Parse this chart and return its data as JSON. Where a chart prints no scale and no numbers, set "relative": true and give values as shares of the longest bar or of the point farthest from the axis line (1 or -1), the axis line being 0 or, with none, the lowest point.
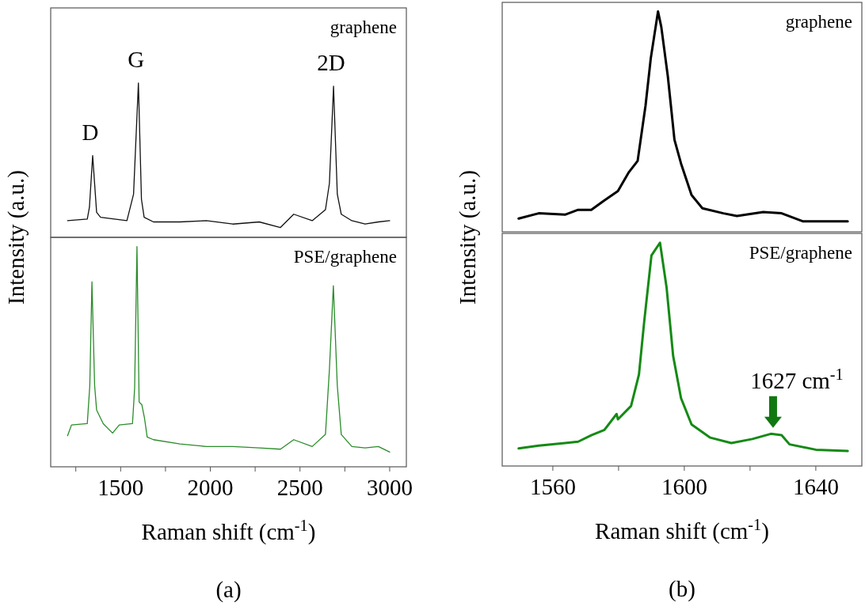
{
  "chart_data": [
    {
      "type": "line",
      "relative": true,
      "title": "graphene",
      "ylabel": "Intensity (a.u.)",
      "xlim": [
        1110,
        3093
      ],
      "tick_labels": false,
      "series": [
        {
          "color": "#111111",
          "x": [
            1204,
            1314,
            1326,
            1344,
            1366,
            1388,
            1535,
            1572,
            1599,
            1616,
            1631,
            1683,
            1831,
            1978,
            2125,
            2273,
            2391,
            2465,
            2568,
            2642,
            2664,
            2687,
            2708,
            2730,
            2789,
            2863,
            2937,
            3000
          ],
          "values": [
            0.108,
            0.119,
            0.195,
            0.53,
            0.162,
            0.13,
            0.108,
            0.28,
            1,
            0.247,
            0.13,
            0.1,
            0.1,
            0.108,
            0.086,
            0.1,
            0.064,
            0.15,
            0.108,
            0.18,
            0.35,
            0.98,
            0.28,
            0.15,
            0.108,
            0.086,
            0.1,
            0.108
          ]
        }
      ],
      "annotations": [
        {
          "text": "D",
          "x": 1344,
          "y": 0.53
        },
        {
          "text": "G",
          "x": 1599,
          "y": 1
        },
        {
          "text": "2D",
          "x": 2687,
          "y": 0.98
        }
      ]
    },
    {
      "type": "line",
      "relative": true,
      "title": "PSE/graphene",
      "xlabel": "Raman shift (cm$^{-1}$)",
      "xlim": [
        1110,
        3093
      ],
      "tick_labels": "x",
      "xticks": [
        {
          "value": 1250,
          "label": null
        },
        1500,
        {
          "value": 1750,
          "label": null
        },
        2000,
        {
          "value": 2250,
          "label": null
        },
        2500,
        {
          "value": 2750,
          "label": null
        },
        3000
      ],
      "series": [
        {
          "color": "#2a8c2a",
          "x": [
            1204,
            1226,
            1314,
            1328,
            1340,
            1355,
            1366,
            1403,
            1455,
            1492,
            1566,
            1578,
            1591,
            1603,
            1618,
            1633,
            1648,
            1683,
            1831,
            1978,
            2125,
            2273,
            2391,
            2465,
            2568,
            2642,
            2664,
            2686,
            2708,
            2730,
            2789,
            2863,
            2937,
            3000
          ],
          "values": [
            0.141,
            0.19,
            0.196,
            0.368,
            0.84,
            0.368,
            0.258,
            0.196,
            0.153,
            0.19,
            0.196,
            0.356,
            1,
            0.294,
            0.282,
            0.221,
            0.135,
            0.123,
            0.104,
            0.092,
            0.092,
            0.086,
            0.08,
            0.123,
            0.092,
            0.147,
            0.442,
            0.822,
            0.368,
            0.147,
            0.092,
            0.086,
            0.092,
            0.067
          ]
        }
      ],
      "annotations": [
        "(a)"
      ]
    },
    {
      "type": "line",
      "relative": true,
      "title": "graphene",
      "ylabel": "Intensity (a.u.)",
      "xlim": [
        1544.6,
        1654
      ],
      "tick_labels": false,
      "series": [
        {
          "color": "#000000",
          "x": [
            1549.6,
            1555.7,
            1563.7,
            1567.7,
            1571.7,
            1575.7,
            1579.8,
            1583,
            1585.8,
            1588.2,
            1589.8,
            1592,
            1593,
            1595,
            1597,
            1599,
            1602.2,
            1605.5,
            1611.9,
            1616,
            1624,
            1629.6,
            1636,
            1644,
            1649.7
          ],
          "values": [
            0.06,
            0.084,
            0.078,
            0.1,
            0.1,
            0.143,
            0.185,
            0.268,
            0.322,
            0.573,
            0.788,
            1,
            0.93,
            0.704,
            0.418,
            0.31,
            0.167,
            0.107,
            0.084,
            0.072,
            0.09,
            0.084,
            0.048,
            0.048,
            0.048
          ]
        }
      ]
    },
    {
      "type": "line",
      "relative": true,
      "title": "PSE/graphene",
      "xlabel": "Raman shift (cm$^{-1}$)",
      "xlim": [
        1544.6,
        1654
      ],
      "tick_labels": "x",
      "xticks": [
        1560,
        {
          "value": 1580,
          "label": null
        },
        1600,
        {
          "value": 1620,
          "label": null
        },
        1640
      ],
      "series": [
        {
          "color": "#148a14",
          "x": [
            1549.6,
            1555.7,
            1563.7,
            1567.7,
            1571.7,
            1575.7,
            1579.4,
            1579.8,
            1583.8,
            1586.2,
            1587.8,
            1590,
            1592.6,
            1594.6,
            1596.6,
            1599,
            1602.2,
            1607.9,
            1614.3,
            1620.7,
            1626.3,
            1629.6,
            1632,
            1640,
            1649.7
          ],
          "values": [
            0.079,
            0.091,
            0.103,
            0.109,
            0.138,
            0.162,
            0.233,
            0.209,
            0.269,
            0.41,
            0.647,
            0.943,
            1,
            0.8,
            0.493,
            0.304,
            0.186,
            0.127,
            0.103,
            0.121,
            0.144,
            0.138,
            0.097,
            0.073,
            0.067
          ]
        }
      ],
      "annotations": [
        {
          "text": "1627 cm$^{-1}$",
          "x": 1627,
          "y": 0.143
        },
        "(b)"
      ]
    }
  ]
}
